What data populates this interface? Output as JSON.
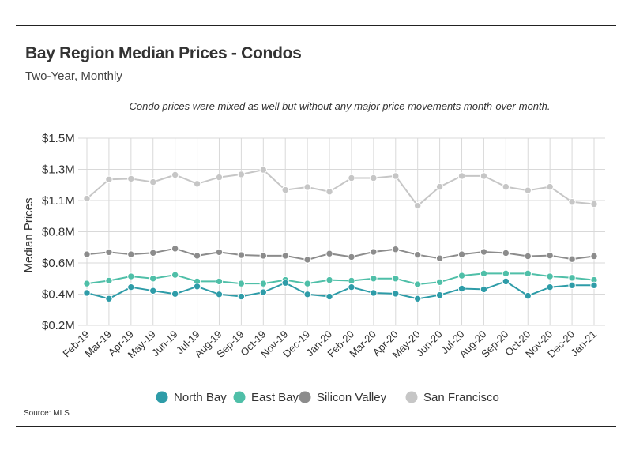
{
  "header": {
    "title": "Bay Region Median Prices - Condos",
    "subtitle": "Two-Year, Monthly",
    "annotation": "Condo prices were mixed as well but without any major price movements month-over-month."
  },
  "footer": {
    "source": "Source:  MLS"
  },
  "chart_data": {
    "type": "line",
    "ylabel": "Median Prices",
    "ylim": [
      200000,
      1500000
    ],
    "yticks": [
      {
        "value": 200000,
        "label": "$0.2M"
      },
      {
        "value": 417000,
        "label": "$0.4M"
      },
      {
        "value": 633000,
        "label": "$0.6M"
      },
      {
        "value": 850000,
        "label": "$0.8M"
      },
      {
        "value": 1067000,
        "label": "$1.1M"
      },
      {
        "value": 1283000,
        "label": "$1.3M"
      },
      {
        "value": 1500000,
        "label": "$1.5M"
      }
    ],
    "grid": true,
    "legend_position": "bottom",
    "categories": [
      "Feb-19",
      "Mar-19",
      "Apr-19",
      "May-19",
      "Jun-19",
      "Jul-19",
      "Aug-19",
      "Sep-19",
      "Oct-19",
      "Nov-19",
      "Dec-19",
      "Jan-20",
      "Feb-20",
      "Mar-20",
      "Apr-20",
      "May-20",
      "Jun-20",
      "Jul-20",
      "Aug-20",
      "Sep-20",
      "Oct-20",
      "Nov-20",
      "Dec-20",
      "Jan-21"
    ],
    "series": [
      {
        "name": "North Bay",
        "color": "#2e9ca8",
        "values": [
          425000,
          385000,
          465000,
          440000,
          418000,
          470000,
          415000,
          400000,
          430000,
          495000,
          415000,
          400000,
          465000,
          425000,
          420000,
          385000,
          410000,
          455000,
          450000,
          505000,
          405000,
          465000,
          478000,
          478000
        ]
      },
      {
        "name": "East Bay",
        "color": "#4fbfa8",
        "values": [
          490000,
          510000,
          540000,
          525000,
          550000,
          505000,
          505000,
          490000,
          490000,
          515000,
          490000,
          515000,
          510000,
          525000,
          525000,
          485000,
          500000,
          545000,
          560000,
          560000,
          560000,
          540000,
          530000,
          515000
        ]
      },
      {
        "name": "Silicon Valley",
        "color": "#8c8c8c",
        "values": [
          693000,
          708000,
          693000,
          703000,
          733000,
          683000,
          708000,
          688000,
          683000,
          683000,
          655000,
          698000,
          675000,
          710000,
          728000,
          690000,
          665000,
          693000,
          710000,
          702000,
          680000,
          685000,
          660000,
          680000
        ]
      },
      {
        "name": "San Francisco",
        "color": "#c6c6c6",
        "values": [
          1080000,
          1213000,
          1218000,
          1195000,
          1245000,
          1183000,
          1228000,
          1248000,
          1280000,
          1140000,
          1160000,
          1128000,
          1223000,
          1223000,
          1237000,
          1030000,
          1162000,
          1237000,
          1237000,
          1162000,
          1137000,
          1162000,
          1057000,
          1042000
        ]
      }
    ]
  }
}
